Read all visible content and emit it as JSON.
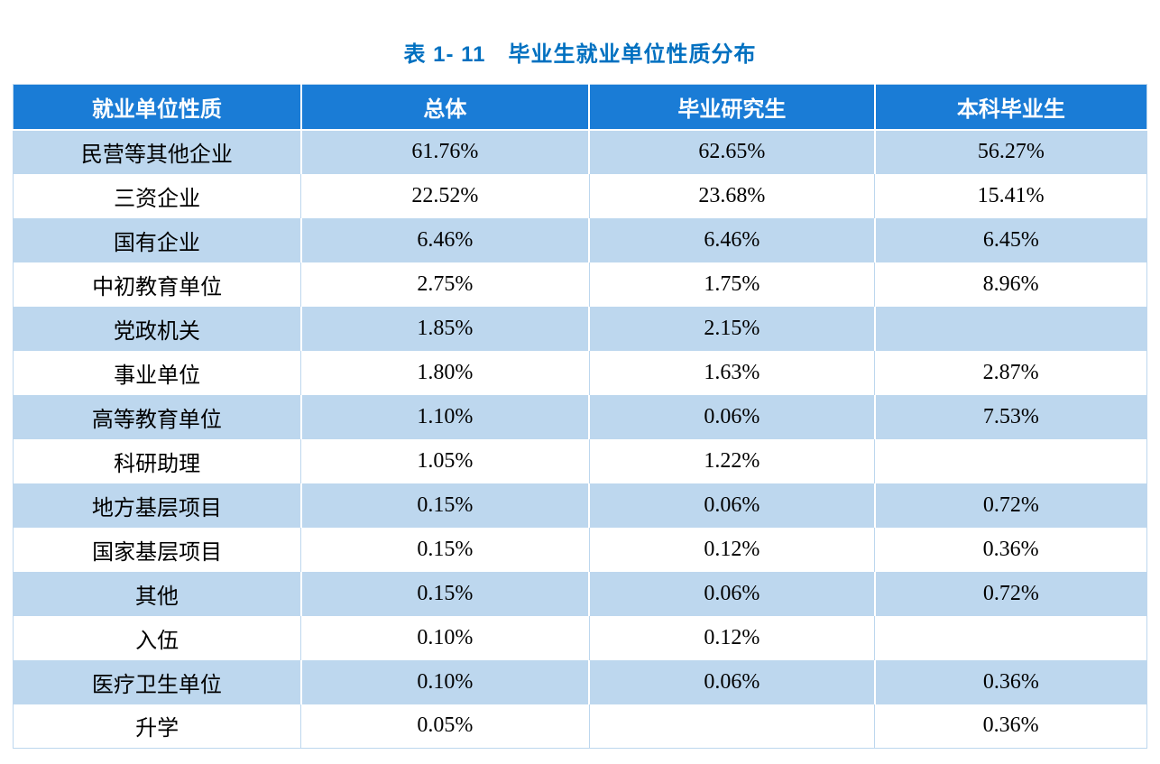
{
  "title": "表 1- 11　毕业生就业单位性质分布",
  "colors": {
    "header_bg": "#1A7CD6",
    "band_bg": "#BDD7EE",
    "title_color": "#0070C0",
    "header_text": "#FFFFFF"
  },
  "table": {
    "headers": [
      "就业单位性质",
      "总体",
      "毕业研究生",
      "本科毕业生"
    ],
    "rows": [
      [
        "民营等其他企业",
        "61.76%",
        "62.65%",
        "56.27%"
      ],
      [
        "三资企业",
        "22.52%",
        "23.68%",
        "15.41%"
      ],
      [
        "国有企业",
        "6.46%",
        "6.46%",
        "6.45%"
      ],
      [
        "中初教育单位",
        "2.75%",
        "1.75%",
        "8.96%"
      ],
      [
        "党政机关",
        "1.85%",
        "2.15%",
        ""
      ],
      [
        "事业单位",
        "1.80%",
        "1.63%",
        "2.87%"
      ],
      [
        "高等教育单位",
        "1.10%",
        "0.06%",
        "7.53%"
      ],
      [
        "科研助理",
        "1.05%",
        "1.22%",
        ""
      ],
      [
        "地方基层项目",
        "0.15%",
        "0.06%",
        "0.72%"
      ],
      [
        "国家基层项目",
        "0.15%",
        "0.12%",
        "0.36%"
      ],
      [
        "其他",
        "0.15%",
        "0.06%",
        "0.72%"
      ],
      [
        "入伍",
        "0.10%",
        "0.12%",
        ""
      ],
      [
        "医疗卫生单位",
        "0.10%",
        "0.06%",
        "0.36%"
      ],
      [
        "升学",
        "0.05%",
        "",
        "0.36%"
      ]
    ]
  },
  "chart_data": {
    "type": "table",
    "title": "表 1- 11　毕业生就业单位性质分布",
    "categories": [
      "民营等其他企业",
      "三资企业",
      "国有企业",
      "中初教育单位",
      "党政机关",
      "事业单位",
      "高等教育单位",
      "科研助理",
      "地方基层项目",
      "国家基层项目",
      "其他",
      "入伍",
      "医疗卫生单位",
      "升学"
    ],
    "series": [
      {
        "name": "总体",
        "values": [
          61.76,
          22.52,
          6.46,
          2.75,
          1.85,
          1.8,
          1.1,
          1.05,
          0.15,
          0.15,
          0.15,
          0.1,
          0.1,
          0.05
        ]
      },
      {
        "name": "毕业研究生",
        "values": [
          62.65,
          23.68,
          6.46,
          1.75,
          2.15,
          1.63,
          0.06,
          1.22,
          0.06,
          0.12,
          0.06,
          0.12,
          0.06,
          null
        ]
      },
      {
        "name": "本科毕业生",
        "values": [
          56.27,
          15.41,
          6.45,
          8.96,
          null,
          2.87,
          7.53,
          null,
          0.72,
          0.36,
          0.72,
          null,
          0.36,
          0.36
        ]
      }
    ],
    "unit": "%"
  }
}
